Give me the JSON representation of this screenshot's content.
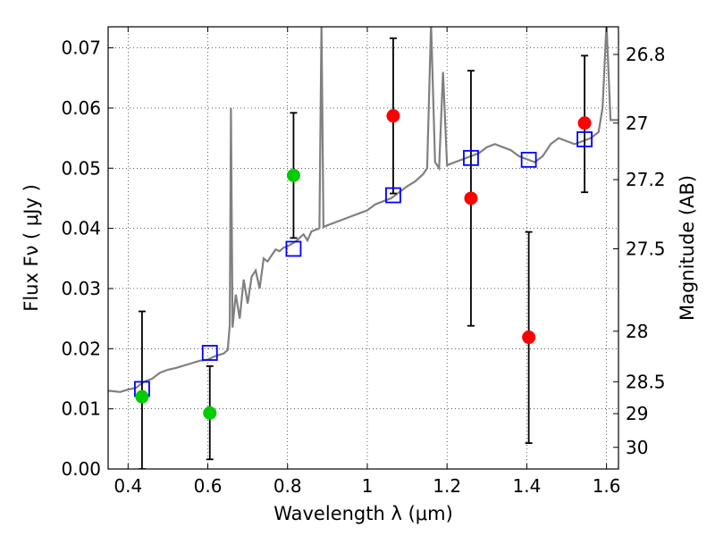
{
  "chart_data": {
    "type": "scatter",
    "xlabel": "Wavelength  λ (μm)",
    "ylabel_left": "Flux  Fν  ( μJy )",
    "ylabel_right": "Magnitude (AB)",
    "xlim": [
      0.35,
      1.63
    ],
    "ylim": [
      0.0,
      0.0735
    ],
    "x_ticks": [
      0.4,
      0.6,
      0.8,
      1.0,
      1.2,
      1.4,
      1.6
    ],
    "x_tick_labels": [
      "0.4",
      "0.6",
      "0.8",
      "1",
      "1.2",
      "1.4",
      "1.6"
    ],
    "y_ticks": [
      0.0,
      0.01,
      0.02,
      0.03,
      0.04,
      0.05,
      0.06,
      0.07
    ],
    "y_tick_labels": [
      "0.00",
      "0.01",
      "0.02",
      "0.03",
      "0.04",
      "0.05",
      "0.06",
      "0.07"
    ],
    "right_ticks": [
      {
        "label": "26.8",
        "flux": 0.0689
      },
      {
        "label": "27",
        "flux": 0.0575
      },
      {
        "label": "27.2",
        "flux": 0.0481
      },
      {
        "label": "27.5",
        "flux": 0.0366
      },
      {
        "label": "28",
        "flux": 0.0229
      },
      {
        "label": "28.5",
        "flux": 0.0145
      },
      {
        "label": "29",
        "flux": 0.0092
      },
      {
        "label": "30",
        "flux": 0.0036
      }
    ],
    "grid": true,
    "colors": {
      "spectrum": "#808080",
      "model_points": "#0000ff",
      "green_points": "#00cc00",
      "red_points": "#ff0000",
      "error_bars": "#000000"
    },
    "spectrum": [
      [
        0.35,
        0.013
      ],
      [
        0.38,
        0.0128
      ],
      [
        0.4,
        0.0132
      ],
      [
        0.42,
        0.0135
      ],
      [
        0.44,
        0.0145
      ],
      [
        0.46,
        0.015
      ],
      [
        0.48,
        0.016
      ],
      [
        0.5,
        0.0165
      ],
      [
        0.52,
        0.0168
      ],
      [
        0.54,
        0.0172
      ],
      [
        0.56,
        0.0176
      ],
      [
        0.58,
        0.018
      ],
      [
        0.6,
        0.0182
      ],
      [
        0.62,
        0.0188
      ],
      [
        0.64,
        0.0192
      ],
      [
        0.65,
        0.0198
      ],
      [
        0.655,
        0.024
      ],
      [
        0.658,
        0.06
      ],
      [
        0.662,
        0.0235
      ],
      [
        0.67,
        0.029
      ],
      [
        0.68,
        0.025
      ],
      [
        0.69,
        0.0315
      ],
      [
        0.7,
        0.0275
      ],
      [
        0.71,
        0.032
      ],
      [
        0.72,
        0.033
      ],
      [
        0.73,
        0.03
      ],
      [
        0.74,
        0.035
      ],
      [
        0.75,
        0.0345
      ],
      [
        0.76,
        0.0355
      ],
      [
        0.77,
        0.0365
      ],
      [
        0.78,
        0.0362
      ],
      [
        0.79,
        0.0368
      ],
      [
        0.8,
        0.037
      ],
      [
        0.82,
        0.0378
      ],
      [
        0.84,
        0.039
      ],
      [
        0.85,
        0.038
      ],
      [
        0.86,
        0.0395
      ],
      [
        0.88,
        0.04
      ],
      [
        0.885,
        0.074
      ],
      [
        0.89,
        0.0402
      ],
      [
        0.9,
        0.0405
      ],
      [
        0.92,
        0.041
      ],
      [
        0.94,
        0.0415
      ],
      [
        0.96,
        0.042
      ],
      [
        0.98,
        0.0425
      ],
      [
        1.0,
        0.043
      ],
      [
        1.02,
        0.044
      ],
      [
        1.04,
        0.0445
      ],
      [
        1.06,
        0.045
      ],
      [
        1.08,
        0.046
      ],
      [
        1.1,
        0.047
      ],
      [
        1.12,
        0.0478
      ],
      [
        1.14,
        0.049
      ],
      [
        1.15,
        0.05
      ],
      [
        1.16,
        0.074
      ],
      [
        1.17,
        0.051
      ],
      [
        1.18,
        0.05
      ],
      [
        1.19,
        0.066
      ],
      [
        1.2,
        0.0505
      ],
      [
        1.22,
        0.051
      ],
      [
        1.24,
        0.0515
      ],
      [
        1.26,
        0.052
      ],
      [
        1.28,
        0.0525
      ],
      [
        1.3,
        0.0535
      ],
      [
        1.32,
        0.054
      ],
      [
        1.34,
        0.0535
      ],
      [
        1.36,
        0.053
      ],
      [
        1.38,
        0.052
      ],
      [
        1.4,
        0.0515
      ],
      [
        1.42,
        0.051
      ],
      [
        1.44,
        0.052
      ],
      [
        1.46,
        0.054
      ],
      [
        1.48,
        0.055
      ],
      [
        1.5,
        0.0545
      ],
      [
        1.52,
        0.054
      ],
      [
        1.54,
        0.0545
      ],
      [
        1.56,
        0.055
      ],
      [
        1.58,
        0.056
      ],
      [
        1.59,
        0.06
      ],
      [
        1.6,
        0.074
      ],
      [
        1.61,
        0.058
      ],
      [
        1.63,
        0.058
      ]
    ],
    "model_points": [
      {
        "x": 0.435,
        "y": 0.0133
      },
      {
        "x": 0.605,
        "y": 0.0193
      },
      {
        "x": 0.815,
        "y": 0.0366
      },
      {
        "x": 1.065,
        "y": 0.0455
      },
      {
        "x": 1.26,
        "y": 0.0517
      },
      {
        "x": 1.405,
        "y": 0.0514
      },
      {
        "x": 1.545,
        "y": 0.0548
      }
    ],
    "green_points": [
      {
        "x": 0.435,
        "y": 0.012,
        "err": [
          0.0,
          0.0262
        ]
      },
      {
        "x": 0.605,
        "y": 0.0093,
        "err": [
          0.0016,
          0.0171
        ]
      },
      {
        "x": 0.815,
        "y": 0.0488,
        "err": [
          0.0384,
          0.0592
        ]
      }
    ],
    "red_points": [
      {
        "x": 1.065,
        "y": 0.0587,
        "err": [
          0.0458,
          0.0716
        ]
      },
      {
        "x": 1.26,
        "y": 0.045,
        "err": [
          0.0238,
          0.0662
        ]
      },
      {
        "x": 1.405,
        "y": 0.0219,
        "err": [
          0.0043,
          0.0394
        ]
      },
      {
        "x": 1.545,
        "y": 0.0575,
        "err": [
          0.046,
          0.0687
        ]
      }
    ]
  }
}
